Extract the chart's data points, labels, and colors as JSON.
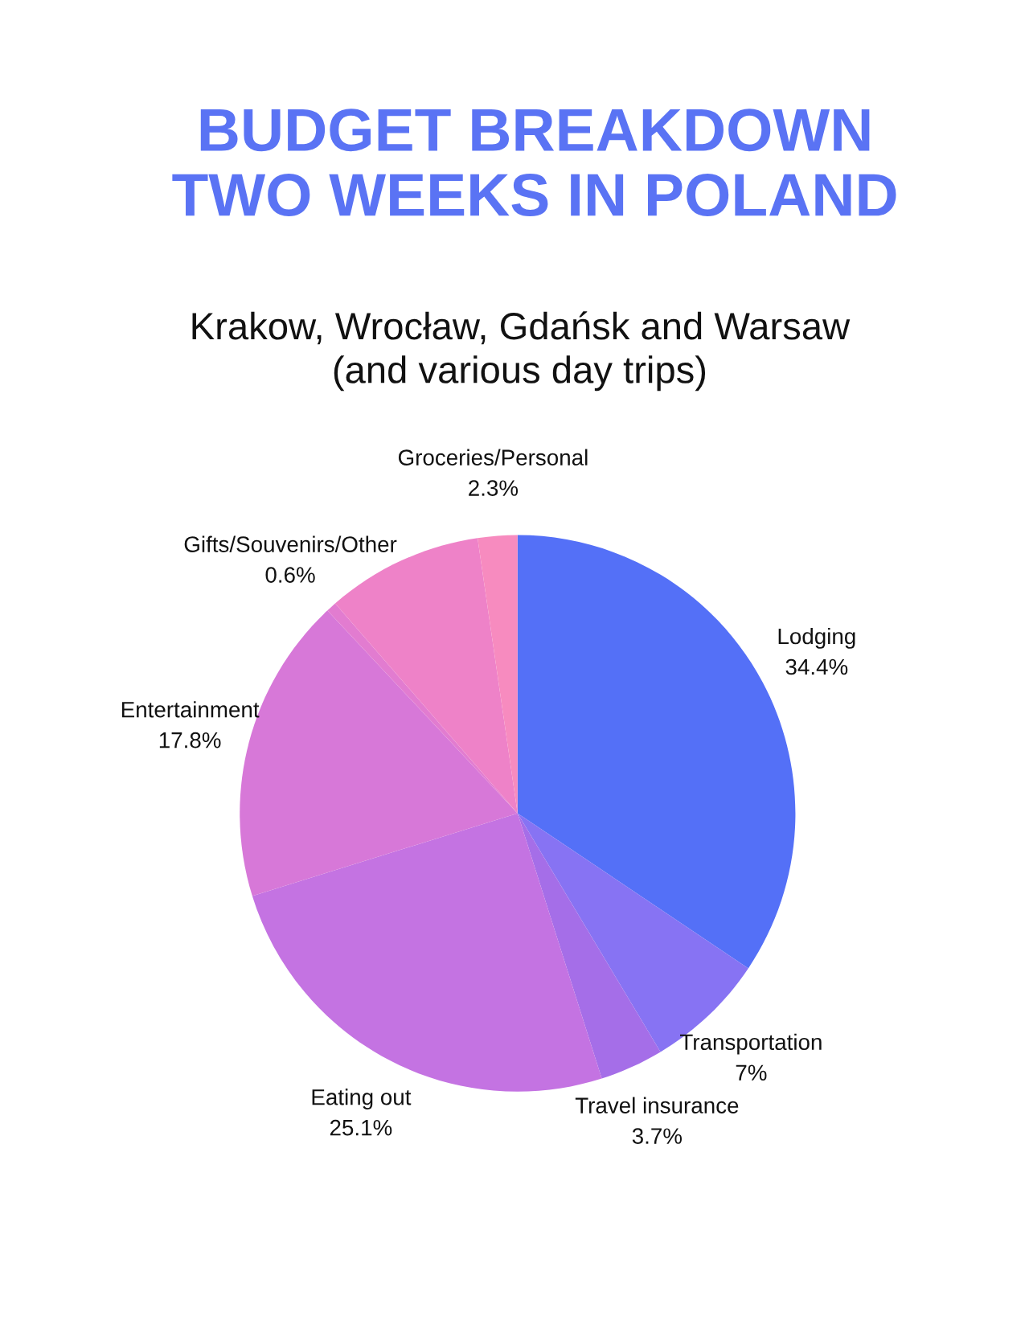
{
  "chart_data": {
    "type": "pie",
    "title": "BUDGET BREAKDOWN\nTWO WEEKS IN POLAND",
    "subtitle": "Krakow, Wrocław, Gdańsk and Warsaw\n(and various day trips)",
    "categories": [
      "Lodging",
      "Transportation",
      "Travel insurance",
      "Eating out",
      "Entertainment",
      "Gifts/Souvenirs/Other",
      null,
      "Groceries/Personal"
    ],
    "values": [
      34.4,
      7,
      3.7,
      25.1,
      17.8,
      0.6,
      9.1,
      2.3
    ],
    "value_labels": [
      "34.4%",
      "7%",
      "3.7%",
      "25.1%",
      "17.8%",
      "0.6%",
      null,
      "2.3%"
    ],
    "colors": [
      "#5470f7",
      "#8773f3",
      "#a56ee8",
      "#c473e2",
      "#d778d8",
      "#e27cd0",
      "#ee82c8",
      "#f78bbf"
    ],
    "legend": false
  }
}
